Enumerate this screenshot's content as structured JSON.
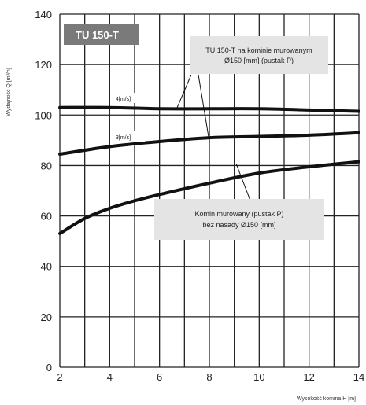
{
  "chart_data": {
    "type": "line",
    "xlabel": "Wysokość komina H [m]",
    "ylabel": "Wydajność Q [m³/h]",
    "xlim": [
      2,
      14
    ],
    "ylim": [
      0,
      140
    ],
    "x_ticks": [
      "2",
      "4",
      "6",
      "8",
      "10",
      "12",
      "14"
    ],
    "y_ticks": [
      "0",
      "20",
      "40",
      "60",
      "80",
      "100",
      "120",
      "140"
    ],
    "grid": true,
    "series": [
      {
        "name": "4[m/s]",
        "x": [
          2,
          4,
          6,
          8,
          10,
          12,
          14
        ],
        "y": [
          103,
          103,
          102.5,
          102.5,
          102.5,
          102,
          101.5
        ]
      },
      {
        "name": "3[m/s]",
        "x": [
          2,
          4,
          6,
          8,
          10,
          12,
          14
        ],
        "y": [
          84.5,
          87.5,
          89.5,
          91,
          91.5,
          92,
          93
        ]
      },
      {
        "name": "",
        "x": [
          2,
          3,
          4,
          5,
          6,
          8,
          10,
          12,
          14
        ],
        "y": [
          53,
          59,
          63,
          66,
          68.5,
          73,
          77,
          79.5,
          81.5
        ]
      }
    ],
    "badge": "TU 150-T",
    "annotations": [
      {
        "line1": "TU 150-T na kominie murowanym",
        "line2": "Ø150 [mm] (pustak P)"
      },
      {
        "line1": "Komin murowany (pustak P)",
        "line2": "bez nasady Ø150 [mm]"
      }
    ],
    "colors": {
      "badge": "#7a7a7a",
      "box": "#e4e4e4",
      "line": "#111111",
      "grid": "#222222"
    }
  }
}
